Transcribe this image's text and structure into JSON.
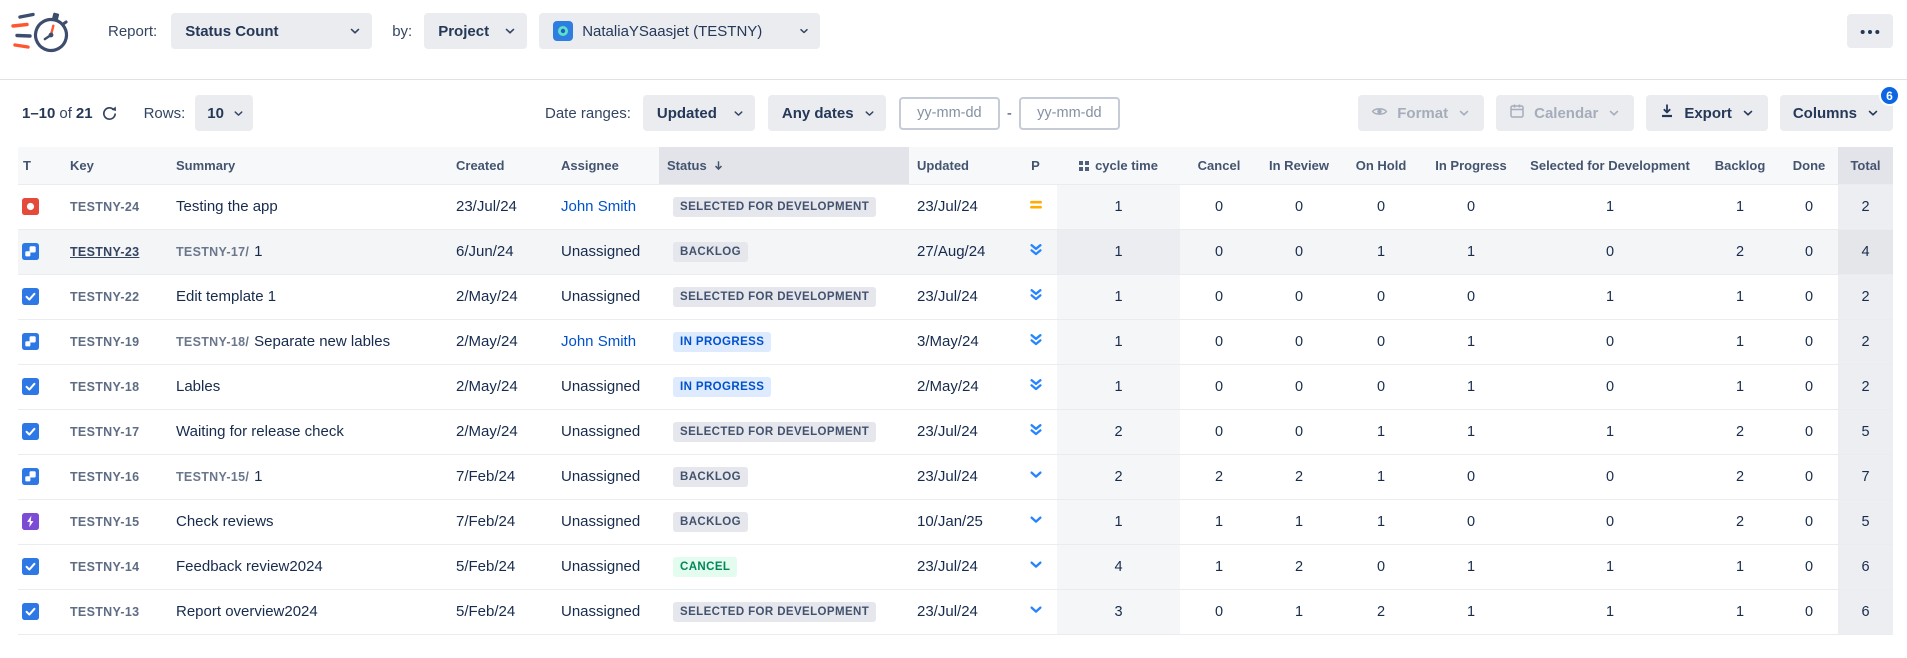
{
  "header": {
    "report_label": "Report:",
    "report_value": "Status Count",
    "by_label": "by:",
    "by_value": "Project",
    "project_value": "NataliaYSaasjet (TESTNY)"
  },
  "toolbar": {
    "pagination": {
      "range": "1–10",
      "of_label": "of",
      "total": "21"
    },
    "rows_label": "Rows:",
    "rows_value": "10",
    "date_ranges_label": "Date ranges:",
    "date_field_value": "Updated",
    "date_mode_value": "Any dates",
    "date_from_placeholder": "yy-mm-dd",
    "date_to_placeholder": "yy-mm-dd",
    "date_separator": "-",
    "format_label": "Format",
    "calendar_label": "Calendar",
    "export_label": "Export",
    "columns_label": "Columns",
    "columns_badge": "6"
  },
  "icons": {
    "refresh": "refresh-icon",
    "format": "eye-icon",
    "calendar": "calendar-icon",
    "export": "download-icon",
    "more": "more-options-icon",
    "dropdown": "chevron-down-icon",
    "sort": "sort-descending-icon",
    "cycle_handle": "drag-handle-icon"
  },
  "colors": {
    "accent_blue": "#0c66e4",
    "link_blue": "#0052cc",
    "priority_blue": "#2684ff",
    "priority_orange": "#ffab00",
    "status_grey_bg": "#e5e7ec",
    "status_blue_bg": "#deebff",
    "status_green_bg": "#e3fcef",
    "bug_red": "#e5493b",
    "task_blue": "#2e78e6",
    "epic_purple": "#7c4dd4"
  },
  "table": {
    "columns": [
      {
        "label": "T"
      },
      {
        "label": "Key"
      },
      {
        "label": "Summary"
      },
      {
        "label": "Created"
      },
      {
        "label": "Assignee"
      },
      {
        "label": "Status",
        "sorted": "desc",
        "shaded": true
      },
      {
        "label": "Updated"
      },
      {
        "label": "P",
        "align": "center"
      },
      {
        "label": "cycle time",
        "drag_handle": true,
        "align": "center"
      },
      {
        "label": "Cancel",
        "align": "center"
      },
      {
        "label": "In Review",
        "align": "center"
      },
      {
        "label": "On Hold",
        "align": "center"
      },
      {
        "label": "In Progress",
        "align": "center"
      },
      {
        "label": "Selected for Development",
        "align": "center"
      },
      {
        "label": "Backlog",
        "align": "center"
      },
      {
        "label": "Done",
        "align": "center"
      },
      {
        "label": "Total",
        "align": "center",
        "shaded": true
      }
    ],
    "count_columns": [
      "cycle-time",
      "cancel",
      "in-review",
      "on-hold",
      "in-progress",
      "selected-for-development",
      "backlog",
      "done",
      "total"
    ],
    "rows": [
      {
        "type": "bug",
        "key": "TESTNY-24",
        "key_emphasized": false,
        "summary_prefix": "",
        "summary": "Testing the app",
        "created": "23/Jul/24",
        "assignee": "John Smith",
        "assignee_is_link": true,
        "status": "SELECTED FOR DEVELOPMENT",
        "status_color": "grey",
        "updated": "23/Jul/24",
        "priority": "medium",
        "counts": [
          1,
          0,
          0,
          0,
          0,
          1,
          1,
          0,
          2
        ],
        "highlighted": false
      },
      {
        "type": "subtask",
        "key": "TESTNY-23",
        "key_emphasized": true,
        "summary_prefix": "TESTNY-17/",
        "summary": "1",
        "created": "6/Jun/24",
        "assignee": "Unassigned",
        "assignee_is_link": false,
        "status": "BACKLOG",
        "status_color": "grey",
        "updated": "27/Aug/24",
        "priority": "lowest",
        "counts": [
          1,
          0,
          0,
          1,
          1,
          0,
          2,
          0,
          4
        ],
        "highlighted": true
      },
      {
        "type": "task",
        "key": "TESTNY-22",
        "key_emphasized": false,
        "summary_prefix": "",
        "summary": "Edit template 1",
        "created": "2/May/24",
        "assignee": "Unassigned",
        "assignee_is_link": false,
        "status": "SELECTED FOR DEVELOPMENT",
        "status_color": "grey",
        "updated": "23/Jul/24",
        "priority": "lowest",
        "counts": [
          1,
          0,
          0,
          0,
          0,
          1,
          1,
          0,
          2
        ],
        "highlighted": false
      },
      {
        "type": "subtask",
        "key": "TESTNY-19",
        "key_emphasized": false,
        "summary_prefix": "TESTNY-18/",
        "summary": "Separate new lables",
        "created": "2/May/24",
        "assignee": "John Smith",
        "assignee_is_link": true,
        "status": "IN PROGRESS",
        "status_color": "blue",
        "updated": "3/May/24",
        "priority": "lowest",
        "counts": [
          1,
          0,
          0,
          0,
          1,
          0,
          1,
          0,
          2
        ],
        "highlighted": false
      },
      {
        "type": "task",
        "key": "TESTNY-18",
        "key_emphasized": false,
        "summary_prefix": "",
        "summary": "Lables",
        "created": "2/May/24",
        "assignee": "Unassigned",
        "assignee_is_link": false,
        "status": "IN PROGRESS",
        "status_color": "blue",
        "updated": "2/May/24",
        "priority": "lowest",
        "counts": [
          1,
          0,
          0,
          0,
          1,
          0,
          1,
          0,
          2
        ],
        "highlighted": false
      },
      {
        "type": "task",
        "key": "TESTNY-17",
        "key_emphasized": false,
        "summary_prefix": "",
        "summary": "Waiting for release check",
        "created": "2/May/24",
        "assignee": "Unassigned",
        "assignee_is_link": false,
        "status": "SELECTED FOR DEVELOPMENT",
        "status_color": "grey",
        "updated": "23/Jul/24",
        "priority": "lowest",
        "counts": [
          2,
          0,
          0,
          1,
          1,
          1,
          2,
          0,
          5
        ],
        "highlighted": false
      },
      {
        "type": "subtask",
        "key": "TESTNY-16",
        "key_emphasized": false,
        "summary_prefix": "TESTNY-15/",
        "summary": "1",
        "created": "7/Feb/24",
        "assignee": "Unassigned",
        "assignee_is_link": false,
        "status": "BACKLOG",
        "status_color": "grey",
        "updated": "23/Jul/24",
        "priority": "low",
        "counts": [
          2,
          2,
          2,
          1,
          0,
          0,
          2,
          0,
          7
        ],
        "highlighted": false
      },
      {
        "type": "epic",
        "key": "TESTNY-15",
        "key_emphasized": false,
        "summary_prefix": "",
        "summary": "Check reviews",
        "created": "7/Feb/24",
        "assignee": "Unassigned",
        "assignee_is_link": false,
        "status": "BACKLOG",
        "status_color": "grey",
        "updated": "10/Jan/25",
        "priority": "low",
        "counts": [
          1,
          1,
          1,
          1,
          0,
          0,
          2,
          0,
          5
        ],
        "highlighted": false
      },
      {
        "type": "task",
        "key": "TESTNY-14",
        "key_emphasized": false,
        "summary_prefix": "",
        "summary": "Feedback review2024",
        "created": "5/Feb/24",
        "assignee": "Unassigned",
        "assignee_is_link": false,
        "status": "CANCEL",
        "status_color": "green",
        "updated": "23/Jul/24",
        "priority": "low",
        "counts": [
          4,
          1,
          2,
          0,
          1,
          1,
          1,
          0,
          6
        ],
        "highlighted": false
      },
      {
        "type": "task",
        "key": "TESTNY-13",
        "key_emphasized": false,
        "summary_prefix": "",
        "summary": "Report overview2024",
        "created": "5/Feb/24",
        "assignee": "Unassigned",
        "assignee_is_link": false,
        "status": "SELECTED FOR DEVELOPMENT",
        "status_color": "grey",
        "updated": "23/Jul/24",
        "priority": "low",
        "counts": [
          3,
          0,
          1,
          2,
          1,
          1,
          1,
          0,
          6
        ],
        "highlighted": false
      }
    ]
  }
}
